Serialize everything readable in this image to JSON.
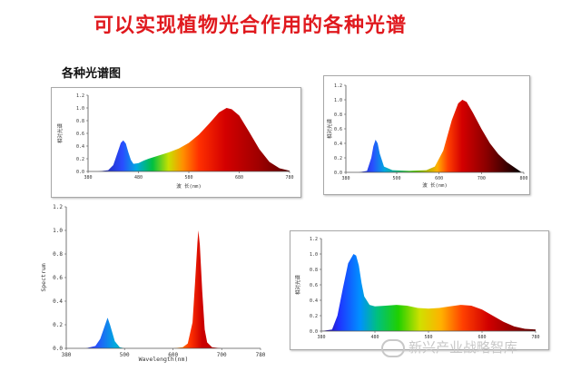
{
  "page": {
    "title": "可以实现植物光合作用的各种光谱",
    "subtitle": "各种光谱图",
    "watermark": "新兴产业战略智库"
  },
  "chart_data": [
    {
      "id": "panel1",
      "type": "area",
      "xlabel": "波 长(nm)",
      "ylabel": "相对光谱",
      "x_ticks": [
        380,
        480,
        580,
        680,
        780
      ],
      "y_ticks": [
        "0.0",
        "0.2",
        "0.4",
        "0.6",
        "0.8",
        "1.0",
        "1.2"
      ],
      "xlim": [
        380,
        780
      ],
      "ylim": [
        0,
        1.2
      ],
      "x": [
        380,
        400,
        420,
        430,
        440,
        445,
        450,
        455,
        460,
        465,
        470,
        480,
        490,
        500,
        520,
        540,
        560,
        580,
        600,
        620,
        640,
        655,
        665,
        680,
        700,
        720,
        740,
        760,
        780
      ],
      "y": [
        0,
        0,
        0.02,
        0.1,
        0.33,
        0.45,
        0.49,
        0.44,
        0.3,
        0.18,
        0.12,
        0.13,
        0.17,
        0.2,
        0.25,
        0.3,
        0.36,
        0.45,
        0.58,
        0.75,
        0.93,
        1.0,
        0.98,
        0.88,
        0.62,
        0.35,
        0.15,
        0.05,
        0.01
      ]
    },
    {
      "id": "panel2",
      "type": "area",
      "xlabel": "波 长(nm)",
      "ylabel": "相对光谱",
      "x_ticks": [
        380,
        500,
        600,
        700,
        800
      ],
      "y_ticks": [
        "0.0",
        "0.2",
        "0.4",
        "0.6",
        "0.8",
        "1.0",
        "1.2"
      ],
      "xlim": [
        380,
        800
      ],
      "ylim": [
        0,
        1.2
      ],
      "x": [
        380,
        410,
        430,
        440,
        445,
        450,
        455,
        460,
        470,
        490,
        530,
        570,
        590,
        610,
        630,
        645,
        655,
        665,
        680,
        700,
        720,
        740,
        760,
        780,
        790,
        795
      ],
      "y": [
        0,
        0,
        0.02,
        0.2,
        0.36,
        0.45,
        0.4,
        0.26,
        0.08,
        0.03,
        0.02,
        0.03,
        0.08,
        0.3,
        0.72,
        0.95,
        1.0,
        0.97,
        0.82,
        0.6,
        0.4,
        0.25,
        0.14,
        0.06,
        0.02,
        0
      ]
    },
    {
      "id": "panel3",
      "type": "area",
      "xlabel": "Wavelength(nm)",
      "ylabel": "Spectrum",
      "x_ticks": [
        380,
        500,
        600,
        700,
        780
      ],
      "y_ticks": [
        "0.0",
        "0.2",
        "0.4",
        "0.6",
        "0.8",
        "1.0",
        "1.2"
      ],
      "xlim": [
        380,
        780
      ],
      "ylim": [
        0,
        1.2
      ],
      "x": [
        380,
        420,
        440,
        450,
        460,
        465,
        470,
        480,
        490,
        500,
        560,
        600,
        620,
        630,
        640,
        645,
        650,
        652,
        655,
        660,
        665,
        670,
        680,
        700,
        780
      ],
      "y": [
        0,
        0,
        0.02,
        0.08,
        0.2,
        0.26,
        0.2,
        0.06,
        0.01,
        0,
        0,
        0,
        0.01,
        0.04,
        0.22,
        0.55,
        0.9,
        1.0,
        0.88,
        0.48,
        0.16,
        0.05,
        0.01,
        0,
        0
      ]
    },
    {
      "id": "panel4",
      "type": "area",
      "xlabel": "",
      "ylabel": "相对光谱",
      "x_ticks": [
        "380",
        "480",
        "580",
        "680",
        "780"
      ],
      "y_ticks": [
        "0.0",
        "0.2",
        "0.4",
        "0.6",
        "0.8",
        "1.0",
        "1.2"
      ],
      "xlim": [
        380,
        780
      ],
      "ylim": [
        0,
        1.2
      ],
      "x": [
        380,
        400,
        410,
        420,
        430,
        440,
        445,
        450,
        455,
        460,
        470,
        480,
        500,
        520,
        540,
        560,
        580,
        600,
        620,
        640,
        660,
        680,
        700,
        720,
        740,
        760,
        780
      ],
      "y": [
        0,
        0.02,
        0.2,
        0.55,
        0.88,
        1.0,
        0.98,
        0.85,
        0.62,
        0.45,
        0.34,
        0.32,
        0.33,
        0.34,
        0.33,
        0.3,
        0.29,
        0.3,
        0.32,
        0.34,
        0.33,
        0.28,
        0.2,
        0.12,
        0.06,
        0.03,
        0.02
      ]
    }
  ]
}
